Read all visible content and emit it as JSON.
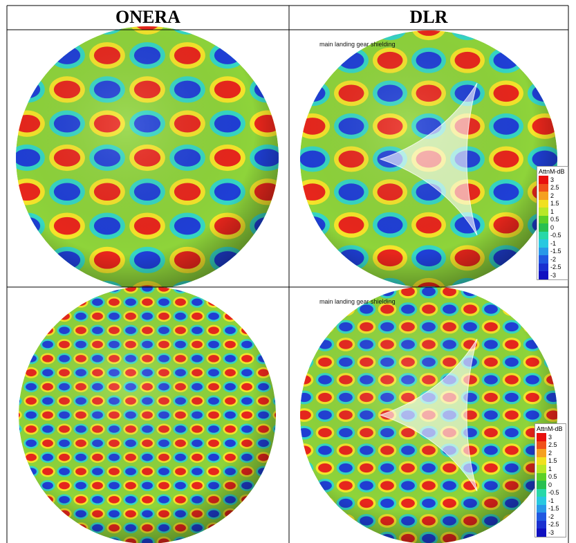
{
  "table": {
    "headers": [
      "ONERA",
      "DLR"
    ],
    "rows": [
      [
        {},
        {
          "annotation": "main landing gear shielding",
          "legend": {
            "title": "AttnM-dB",
            "labels": [
              "3",
              "2.5",
              "2",
              "1.5",
              "1",
              "0.5",
              "0",
              "-0.5",
              "-1",
              "-1.5",
              "-2",
              "-2.5",
              "-3"
            ]
          }
        }
      ],
      [
        {},
        {
          "annotation": "main landing gear shielding",
          "legend": {
            "title": "AttnM-dB",
            "labels": [
              "3",
              "2.5",
              "2",
              "1.5",
              "1",
              "0.5",
              "0",
              "-0.5",
              "-1",
              "-1.5",
              "-2",
              "-2.5",
              "-3"
            ]
          }
        }
      ]
    ]
  }
}
